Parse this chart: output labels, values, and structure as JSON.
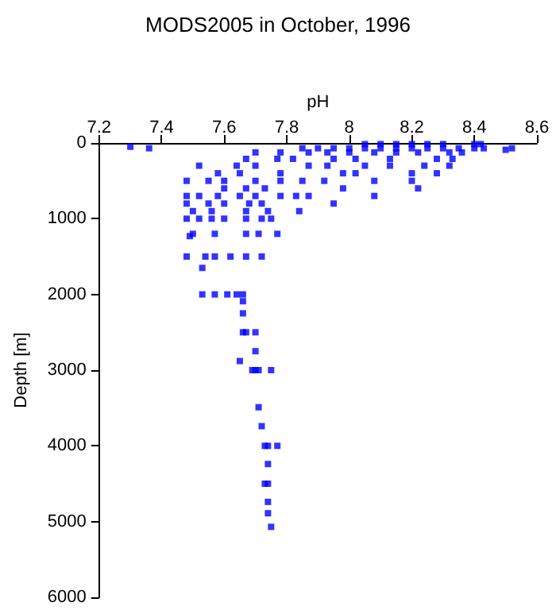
{
  "chart_data": {
    "type": "scatter",
    "title": "MODS2005 in October, 1996",
    "xlabel": "pH",
    "ylabel": "Depth [m]",
    "marker": "square",
    "grid": false,
    "xlim": [
      7.2,
      8.6
    ],
    "xticks": [
      7.2,
      7.4,
      7.6,
      7.8,
      8,
      8.2,
      8.4,
      8.6
    ],
    "ylim": [
      6000,
      0
    ],
    "yticks": [
      0,
      1000,
      2000,
      3000,
      4000,
      5000,
      6000
    ],
    "series": [
      {
        "color": "#0000ff",
        "x": [
          7.3,
          7.36,
          8.52,
          8.5,
          7.85,
          7.9,
          7.95,
          8,
          8.05,
          8.1,
          8.15,
          8.2,
          8.25,
          8.3,
          8.35,
          8.4,
          8.43,
          8.05,
          8.1,
          8.15,
          8.2,
          8.25,
          8.3,
          8.4,
          8.42,
          7.7,
          7.78,
          7.87,
          7.93,
          8,
          8.08,
          8.15,
          8.22,
          8.32,
          8.36,
          7.67,
          7.77,
          7.82,
          7.95,
          8.02,
          8.13,
          8.28,
          8.33,
          7.52,
          7.64,
          7.7,
          7.87,
          7.93,
          8.05,
          8.13,
          8.24,
          8.32,
          7.58,
          7.65,
          7.78,
          7.98,
          8.02,
          8.2,
          8.28,
          7.48,
          7.55,
          7.6,
          7.7,
          7.78,
          7.85,
          7.92,
          8.08,
          8.2,
          7.6,
          7.67,
          7.73,
          7.98,
          8.22,
          7.48,
          7.52,
          7.58,
          7.65,
          7.7,
          7.78,
          7.83,
          7.87,
          8.08,
          7.48,
          7.55,
          7.6,
          7.68,
          7.72,
          7.95,
          7.5,
          7.56,
          7.67,
          7.74,
          7.84,
          7.48,
          7.52,
          7.56,
          7.6,
          7.67,
          7.72,
          7.75,
          7.5,
          7.57,
          7.67,
          7.71,
          7.77,
          7.49,
          7.48,
          7.54,
          7.57,
          7.62,
          7.67,
          7.72,
          7.53,
          7.53,
          7.57,
          7.61,
          7.64,
          7.66,
          7.66,
          7.66,
          7.66,
          7.67,
          7.7,
          7.7,
          7.65,
          7.69,
          7.7,
          7.71,
          7.75,
          7.71,
          7.72,
          7.73,
          7.74,
          7.77,
          7.74,
          7.73,
          7.74,
          7.74,
          7.74,
          7.75
        ],
        "values": [
          50,
          70,
          70,
          90,
          70,
          70,
          70,
          70,
          70,
          70,
          70,
          70,
          70,
          70,
          70,
          70,
          70,
          15,
          15,
          15,
          15,
          15,
          15,
          15,
          15,
          125,
          125,
          125,
          125,
          125,
          125,
          125,
          125,
          125,
          125,
          210,
          210,
          210,
          210,
          210,
          210,
          210,
          210,
          300,
          300,
          300,
          300,
          300,
          300,
          300,
          300,
          300,
          400,
          400,
          400,
          400,
          400,
          400,
          400,
          500,
          500,
          500,
          500,
          500,
          500,
          500,
          500,
          500,
          600,
          600,
          600,
          600,
          600,
          700,
          700,
          700,
          700,
          700,
          700,
          700,
          700,
          700,
          800,
          800,
          800,
          800,
          800,
          800,
          900,
          900,
          900,
          900,
          900,
          1000,
          1000,
          1000,
          1000,
          1000,
          1000,
          1000,
          1200,
          1200,
          1200,
          1200,
          1200,
          1230,
          1500,
          1500,
          1500,
          1500,
          1500,
          1500,
          1650,
          2000,
          2000,
          2000,
          2000,
          2000,
          2090,
          2250,
          2500,
          2500,
          2500,
          2750,
          2880,
          3000,
          3000,
          3000,
          3000,
          3490,
          3740,
          4000,
          4000,
          4000,
          4240,
          4500,
          4500,
          4740,
          4890,
          5070
        ]
      }
    ]
  }
}
